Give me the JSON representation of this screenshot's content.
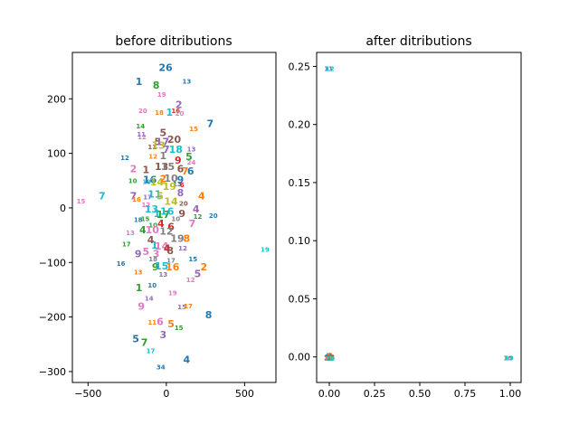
{
  "colors": [
    "#1f77b4",
    "#ff7f0e",
    "#2ca02c",
    "#d62728",
    "#9467bd",
    "#8c564b",
    "#e377c2",
    "#7f7f7f",
    "#bcbd22",
    "#17becf"
  ],
  "chart_data": [
    {
      "type": "scatter",
      "title": "before ditributions",
      "xlabel": "",
      "ylabel": "",
      "xlim": [
        -600,
        700
      ],
      "ylim": [
        -320,
        285
      ],
      "xticks": [
        -500,
        0,
        500
      ],
      "xtick_labels": [
        "−500",
        "0",
        "500"
      ],
      "yticks": [
        -300,
        -200,
        -100,
        0,
        100,
        200
      ],
      "ytick_labels": [
        "−300",
        "−200",
        "−100",
        "0",
        "100",
        "200"
      ],
      "marker": "digit labels",
      "points": [
        {
          "label": "1",
          "x": -175,
          "y": 232,
          "size": "large",
          "color": 0
        },
        {
          "label": "26",
          "x": -5,
          "y": 258,
          "size": "large",
          "color": 0
        },
        {
          "label": "13",
          "x": 130,
          "y": 232,
          "size": "small",
          "color": 0
        },
        {
          "label": "8",
          "x": -65,
          "y": 225,
          "size": "large",
          "color": 2
        },
        {
          "label": "19",
          "x": -30,
          "y": 208,
          "size": "small",
          "color": 6
        },
        {
          "label": "2",
          "x": 80,
          "y": 190,
          "size": "large",
          "color": 4
        },
        {
          "label": "20",
          "x": -150,
          "y": 178,
          "size": "small",
          "color": 6
        },
        {
          "label": "18",
          "x": -45,
          "y": 175,
          "size": "small",
          "color": 1
        },
        {
          "label": "1",
          "x": 20,
          "y": 176,
          "size": "large",
          "color": 9
        },
        {
          "label": "16",
          "x": 60,
          "y": 178,
          "size": "small",
          "color": 3
        },
        {
          "label": "20",
          "x": 85,
          "y": 173,
          "size": "small",
          "color": 6
        },
        {
          "label": "7",
          "x": 280,
          "y": 155,
          "size": "large",
          "color": 0
        },
        {
          "label": "14",
          "x": -165,
          "y": 150,
          "size": "small",
          "color": 2
        },
        {
          "label": "15",
          "x": 175,
          "y": 145,
          "size": "small",
          "color": 1
        },
        {
          "label": "5",
          "x": -20,
          "y": 138,
          "size": "large",
          "color": 5
        },
        {
          "label": "11",
          "x": -160,
          "y": 135,
          "size": "small",
          "color": 4
        },
        {
          "label": "12",
          "x": -155,
          "y": 130,
          "size": "small",
          "color": 6
        },
        {
          "label": "5",
          "x": -55,
          "y": 122,
          "size": "large",
          "color": 5
        },
        {
          "label": "17",
          "x": -25,
          "y": 122,
          "size": "large",
          "color": 4
        },
        {
          "label": "20",
          "x": 50,
          "y": 126,
          "size": "large",
          "color": 5
        },
        {
          "label": "11",
          "x": -90,
          "y": 112,
          "size": "small",
          "color": 5
        },
        {
          "label": "13",
          "x": -50,
          "y": 115,
          "size": "large",
          "color": 8
        },
        {
          "label": "7",
          "x": 0,
          "y": 108,
          "size": "large",
          "color": 4
        },
        {
          "label": "18",
          "x": 60,
          "y": 108,
          "size": "large",
          "color": 9
        },
        {
          "label": "13",
          "x": 160,
          "y": 108,
          "size": "small",
          "color": 4
        },
        {
          "label": "12",
          "x": -265,
          "y": 92,
          "size": "small",
          "color": 0
        },
        {
          "label": "12",
          "x": -85,
          "y": 94,
          "size": "small",
          "color": 1
        },
        {
          "label": "1",
          "x": -20,
          "y": 96,
          "size": "large",
          "color": 7
        },
        {
          "label": "9",
          "x": 75,
          "y": 88,
          "size": "large",
          "color": 3
        },
        {
          "label": "5",
          "x": 145,
          "y": 94,
          "size": "large",
          "color": 2
        },
        {
          "label": "24",
          "x": 160,
          "y": 84,
          "size": "small",
          "color": 6
        },
        {
          "label": "2",
          "x": -210,
          "y": 72,
          "size": "large",
          "color": 6
        },
        {
          "label": "1",
          "x": -130,
          "y": 70,
          "size": "large",
          "color": 5
        },
        {
          "label": "13",
          "x": -30,
          "y": 76,
          "size": "large",
          "color": 5
        },
        {
          "label": "15",
          "x": 10,
          "y": 76,
          "size": "large",
          "color": 7
        },
        {
          "label": "6",
          "x": 90,
          "y": 72,
          "size": "large",
          "color": 5
        },
        {
          "label": "7",
          "x": 120,
          "y": 68,
          "size": "large",
          "color": 1
        },
        {
          "label": "6",
          "x": 155,
          "y": 68,
          "size": "large",
          "color": 0
        },
        {
          "label": "10",
          "x": -215,
          "y": 50,
          "size": "small",
          "color": 2
        },
        {
          "label": "16",
          "x": -105,
          "y": 52,
          "size": "large",
          "color": 0
        },
        {
          "label": "14",
          "x": -60,
          "y": 48,
          "size": "large",
          "color": 8
        },
        {
          "label": "2",
          "x": -20,
          "y": 54,
          "size": "large",
          "color": 1
        },
        {
          "label": "10",
          "x": 30,
          "y": 55,
          "size": "large",
          "color": 7
        },
        {
          "label": "9",
          "x": 90,
          "y": 52,
          "size": "large",
          "color": 0
        },
        {
          "label": "19",
          "x": -125,
          "y": 48,
          "size": "small",
          "color": 9
        },
        {
          "label": "13",
          "x": 70,
          "y": 44,
          "size": "small",
          "color": 0
        },
        {
          "label": "19",
          "x": 20,
          "y": 40,
          "size": "large",
          "color": 8
        },
        {
          "label": "6",
          "x": 100,
          "y": 42,
          "size": "small",
          "color": 3
        },
        {
          "label": "7",
          "x": -210,
          "y": 22,
          "size": "large",
          "color": 4
        },
        {
          "label": "7",
          "x": -410,
          "y": 22,
          "size": "large",
          "color": 9
        },
        {
          "label": "15",
          "x": -545,
          "y": 12,
          "size": "small",
          "color": 6
        },
        {
          "label": "16",
          "x": -190,
          "y": 16,
          "size": "small",
          "color": 1
        },
        {
          "label": "17",
          "x": -120,
          "y": 20,
          "size": "small",
          "color": 4
        },
        {
          "label": "11",
          "x": -75,
          "y": 26,
          "size": "large",
          "color": 9
        },
        {
          "label": "5",
          "x": -40,
          "y": 22,
          "size": "large",
          "color": 8
        },
        {
          "label": "8",
          "x": 90,
          "y": 28,
          "size": "large",
          "color": 4
        },
        {
          "label": "4",
          "x": 225,
          "y": 22,
          "size": "large",
          "color": 1
        },
        {
          "label": "12",
          "x": -130,
          "y": 6,
          "size": "small",
          "color": 6
        },
        {
          "label": "14",
          "x": 30,
          "y": 12,
          "size": "large",
          "color": 8
        },
        {
          "label": "20",
          "x": 110,
          "y": 8,
          "size": "small",
          "color": 5
        },
        {
          "label": "4",
          "x": 190,
          "y": -2,
          "size": "large",
          "color": 4
        },
        {
          "label": "20",
          "x": 300,
          "y": -14,
          "size": "small",
          "color": 0
        },
        {
          "label": "18",
          "x": -180,
          "y": -22,
          "size": "small",
          "color": 0
        },
        {
          "label": "13",
          "x": -95,
          "y": -2,
          "size": "large",
          "color": 9
        },
        {
          "label": "1",
          "x": -60,
          "y": -10,
          "size": "large",
          "color": 9
        },
        {
          "label": "17",
          "x": -20,
          "y": -12,
          "size": "large",
          "color": 2
        },
        {
          "label": "16",
          "x": 5,
          "y": -6,
          "size": "large",
          "color": 9
        },
        {
          "label": "10",
          "x": 60,
          "y": -20,
          "size": "small",
          "color": 7
        },
        {
          "label": "9",
          "x": 100,
          "y": -10,
          "size": "large",
          "color": 5
        },
        {
          "label": "12",
          "x": 200,
          "y": -16,
          "size": "small",
          "color": 2
        },
        {
          "label": "7",
          "x": 165,
          "y": -28,
          "size": "large",
          "color": 6
        },
        {
          "label": "15",
          "x": -135,
          "y": -20,
          "size": "small",
          "color": 2
        },
        {
          "label": "10",
          "x": -85,
          "y": -32,
          "size": "small",
          "color": 2
        },
        {
          "label": "4",
          "x": -35,
          "y": -28,
          "size": "large",
          "color": 3
        },
        {
          "label": "6",
          "x": 30,
          "y": -34,
          "size": "large",
          "color": 3
        },
        {
          "label": "13",
          "x": -230,
          "y": -46,
          "size": "small",
          "color": 6
        },
        {
          "label": "4",
          "x": -150,
          "y": -40,
          "size": "large",
          "color": 2
        },
        {
          "label": "10",
          "x": -90,
          "y": -40,
          "size": "large",
          "color": 6
        },
        {
          "label": "12",
          "x": 0,
          "y": -42,
          "size": "large",
          "color": 7
        },
        {
          "label": "19",
          "x": 70,
          "y": -56,
          "size": "large",
          "color": 7
        },
        {
          "label": "8",
          "x": 130,
          "y": -56,
          "size": "large",
          "color": 1
        },
        {
          "label": "17",
          "x": -255,
          "y": -66,
          "size": "small",
          "color": 2
        },
        {
          "label": "4",
          "x": -100,
          "y": -58,
          "size": "large",
          "color": 5
        },
        {
          "label": "1",
          "x": -75,
          "y": -68,
          "size": "large",
          "color": 9
        },
        {
          "label": "14",
          "x": -30,
          "y": -70,
          "size": "large",
          "color": 6
        },
        {
          "label": "12",
          "x": 105,
          "y": -74,
          "size": "small",
          "color": 4
        },
        {
          "label": "9",
          "x": -180,
          "y": -84,
          "size": "large",
          "color": 4
        },
        {
          "label": "5",
          "x": -130,
          "y": -80,
          "size": "large",
          "color": 6
        },
        {
          "label": "3",
          "x": -65,
          "y": -84,
          "size": "large",
          "color": 6
        },
        {
          "label": "4",
          "x": 5,
          "y": -74,
          "size": "large",
          "color": 3
        },
        {
          "label": "8",
          "x": 25,
          "y": -78,
          "size": "large",
          "color": 5
        },
        {
          "label": "19",
          "x": 630,
          "y": -76,
          "size": "small",
          "color": 9
        },
        {
          "label": "16",
          "x": -290,
          "y": -102,
          "size": "small",
          "color": 0
        },
        {
          "label": "18",
          "x": -85,
          "y": -94,
          "size": "small",
          "color": 7
        },
        {
          "label": "17",
          "x": 30,
          "y": -96,
          "size": "small",
          "color": 7
        },
        {
          "label": "15",
          "x": 170,
          "y": -94,
          "size": "small",
          "color": 0
        },
        {
          "label": "2",
          "x": 240,
          "y": -108,
          "size": "large",
          "color": 1
        },
        {
          "label": "9",
          "x": -70,
          "y": -108,
          "size": "large",
          "color": 2
        },
        {
          "label": "15",
          "x": -30,
          "y": -106,
          "size": "large",
          "color": 9
        },
        {
          "label": "16",
          "x": 40,
          "y": -108,
          "size": "large",
          "color": 1
        },
        {
          "label": "13",
          "x": -20,
          "y": -122,
          "size": "small",
          "color": 4
        },
        {
          "label": "13",
          "x": -180,
          "y": -118,
          "size": "small",
          "color": 1
        },
        {
          "label": "5",
          "x": 200,
          "y": -120,
          "size": "large",
          "color": 4
        },
        {
          "label": "12",
          "x": 155,
          "y": -132,
          "size": "small",
          "color": 6
        },
        {
          "label": "1",
          "x": -175,
          "y": -146,
          "size": "large",
          "color": 2
        },
        {
          "label": "10",
          "x": -90,
          "y": -142,
          "size": "small",
          "color": 0
        },
        {
          "label": "19",
          "x": 40,
          "y": -156,
          "size": "small",
          "color": 6
        },
        {
          "label": "14",
          "x": -110,
          "y": -166,
          "size": "small",
          "color": 4
        },
        {
          "label": "9",
          "x": -160,
          "y": -180,
          "size": "large",
          "color": 6
        },
        {
          "label": "15",
          "x": 100,
          "y": -182,
          "size": "small",
          "color": 4
        },
        {
          "label": "17",
          "x": 140,
          "y": -180,
          "size": "small",
          "color": 1
        },
        {
          "label": "8",
          "x": 270,
          "y": -196,
          "size": "large",
          "color": 0
        },
        {
          "label": "11",
          "x": -90,
          "y": -210,
          "size": "small",
          "color": 1
        },
        {
          "label": "6",
          "x": -40,
          "y": -208,
          "size": "large",
          "color": 6
        },
        {
          "label": "5",
          "x": 30,
          "y": -212,
          "size": "large",
          "color": 1
        },
        {
          "label": "15",
          "x": 80,
          "y": -220,
          "size": "small",
          "color": 2
        },
        {
          "label": "3",
          "x": -20,
          "y": -232,
          "size": "large",
          "color": 4
        },
        {
          "label": "5",
          "x": -195,
          "y": -240,
          "size": "large",
          "color": 0
        },
        {
          "label": "7",
          "x": -140,
          "y": -246,
          "size": "large",
          "color": 2
        },
        {
          "label": "17",
          "x": -100,
          "y": -262,
          "size": "small",
          "color": 9
        },
        {
          "label": "4",
          "x": 130,
          "y": -278,
          "size": "large",
          "color": 0
        },
        {
          "label": "34",
          "x": -35,
          "y": -292,
          "size": "small",
          "color": 0
        }
      ]
    },
    {
      "type": "scatter",
      "title": "after ditributions",
      "xlabel": "",
      "ylabel": "",
      "xlim": [
        -0.07,
        1.06
      ],
      "ylim": [
        -0.022,
        0.262
      ],
      "xticks": [
        0,
        0.25,
        0.5,
        0.75,
        1
      ],
      "xtick_labels": [
        "0.00",
        "0.25",
        "0.50",
        "0.75",
        "1.00"
      ],
      "yticks": [
        0,
        0.05,
        0.1,
        0.15,
        0.2,
        0.25
      ],
      "ytick_labels": [
        "0.00",
        "0.05",
        "0.10",
        "0.15",
        "0.20",
        "0.25"
      ],
      "marker": "digit labels",
      "clusters": [
        {
          "x": 0.0,
          "y": 0.248,
          "labels": [
            "11",
            "12"
          ],
          "colors": [
            0,
            9
          ]
        },
        {
          "x": 0.0,
          "y": 0.0,
          "labels": [
            "1",
            "2",
            "3",
            "4",
            "5",
            "6",
            "7",
            "8",
            "9",
            "10",
            "11",
            "12",
            "13",
            "14",
            "15",
            "16",
            "17",
            "18",
            "19",
            "20"
          ],
          "colors": [
            0,
            1,
            2,
            3,
            4,
            5,
            6,
            7,
            8,
            9,
            0,
            1,
            2,
            3,
            4,
            5,
            6,
            7,
            8,
            9
          ]
        },
        {
          "x": 0.99,
          "y": -0.001,
          "labels": [
            "10",
            "19"
          ],
          "colors": [
            7,
            9
          ]
        }
      ]
    }
  ]
}
